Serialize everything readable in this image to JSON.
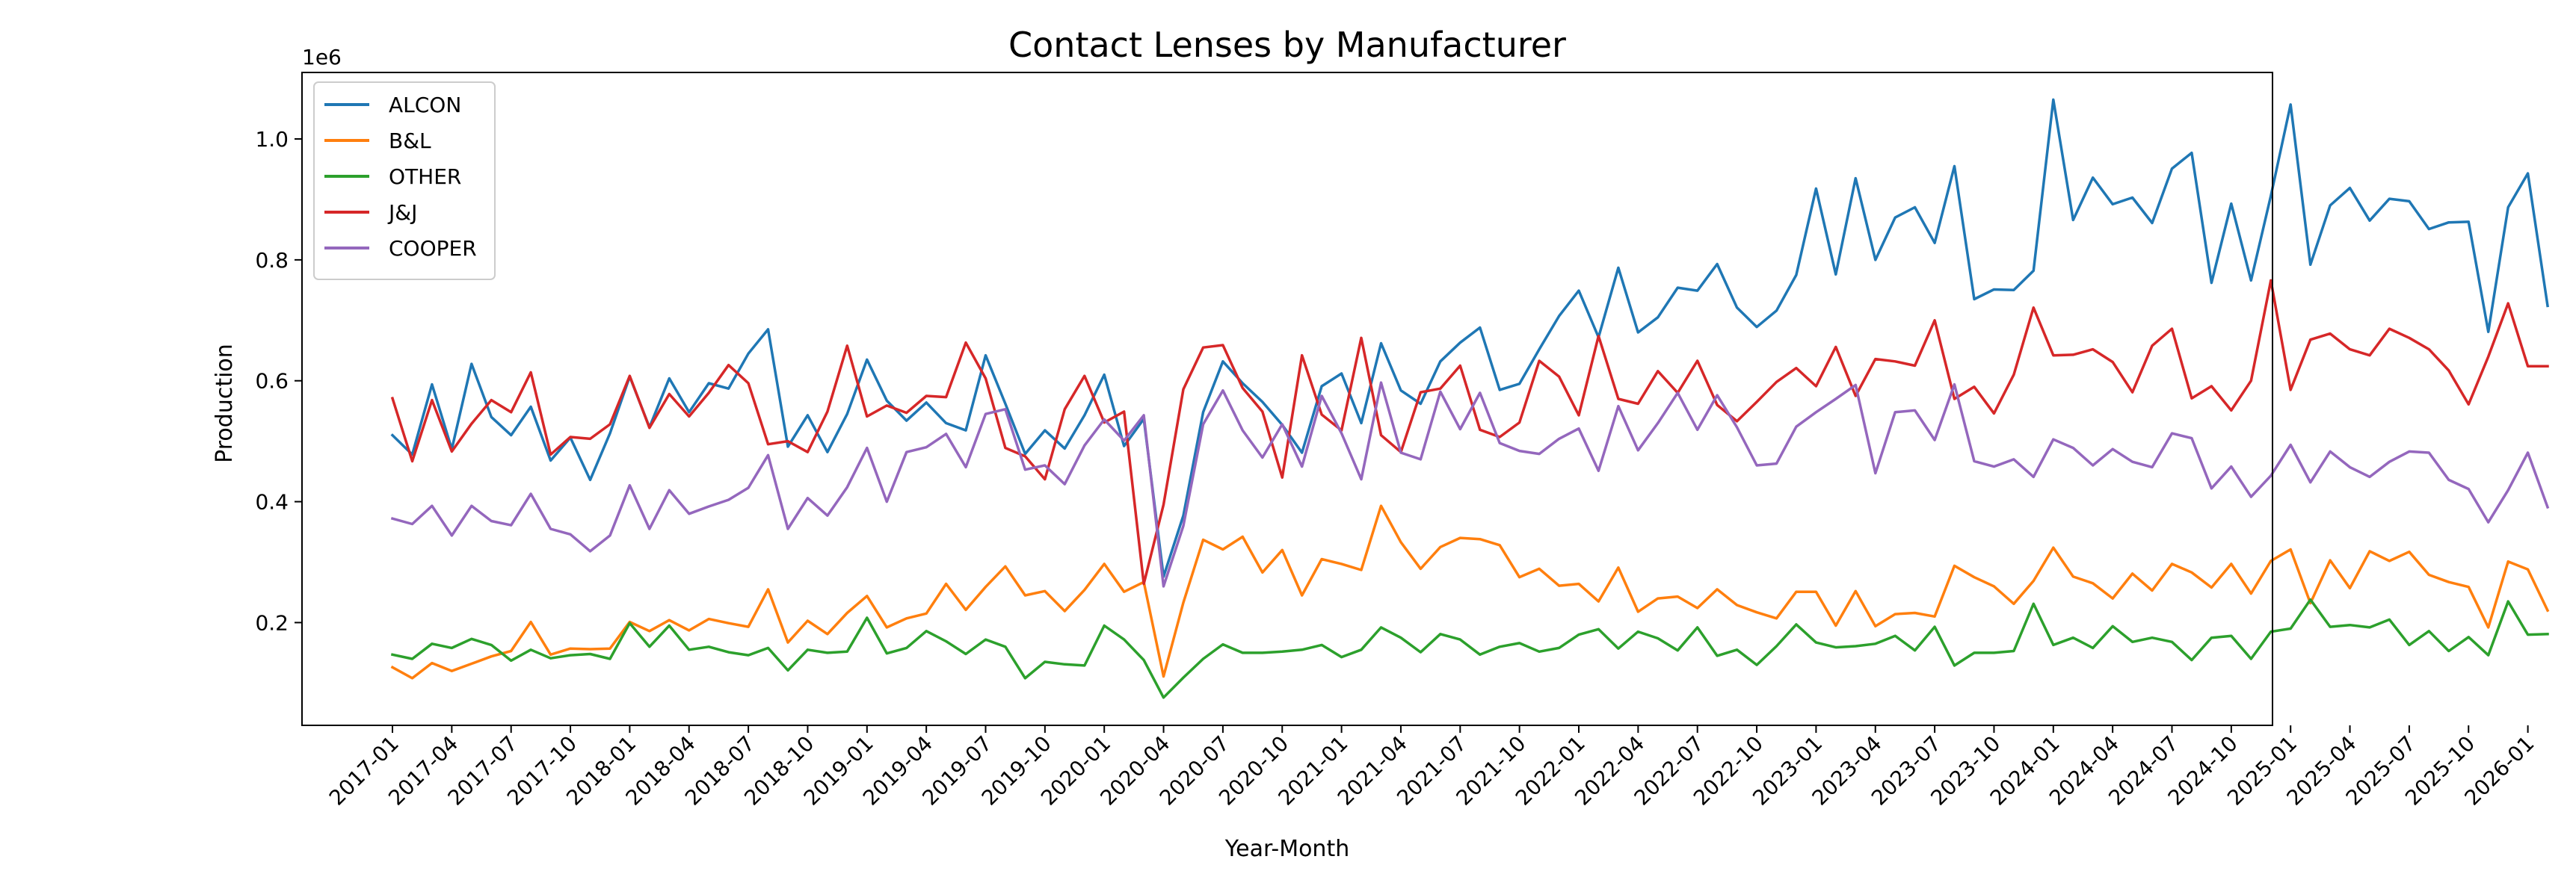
{
  "chart_data": {
    "type": "line",
    "title": "Contact Lenses by Manufacturer",
    "xlabel": "Year-Month",
    "ylabel": "Production",
    "y_offset_label": "1e6",
    "ylim": [
      0.03,
      1.11
    ],
    "yticks": [
      0.2,
      0.4,
      0.6,
      0.8,
      1.0
    ],
    "ytick_labels": [
      "0.2",
      "0.4",
      "0.6",
      "0.8",
      "1.0"
    ],
    "xtick_labels": [
      "2017-01",
      "2017-04",
      "2017-07",
      "2017-10",
      "2018-01",
      "2018-04",
      "2018-07",
      "2018-10",
      "2019-01",
      "2019-04",
      "2019-07",
      "2019-10",
      "2020-01",
      "2020-04",
      "2020-07",
      "2020-10",
      "2021-01",
      "2021-04",
      "2021-07",
      "2021-10",
      "2022-01",
      "2022-04",
      "2022-07",
      "2022-10",
      "2023-01",
      "2023-04",
      "2023-07",
      "2023-10",
      "2024-01",
      "2024-04",
      "2024-07",
      "2024-10",
      "2025-01",
      "2025-04",
      "2025-07",
      "2025-10",
      "2026-01"
    ],
    "xtick_step": 3,
    "grid": false,
    "legend_position": "upper-left",
    "x": [
      "2017-01",
      "2017-02",
      "2017-03",
      "2017-04",
      "2017-05",
      "2017-06",
      "2017-07",
      "2017-08",
      "2017-09",
      "2017-10",
      "2017-11",
      "2017-12",
      "2018-01",
      "2018-02",
      "2018-03",
      "2018-04",
      "2018-05",
      "2018-06",
      "2018-07",
      "2018-08",
      "2018-09",
      "2018-10",
      "2018-11",
      "2018-12",
      "2019-01",
      "2019-02",
      "2019-03",
      "2019-04",
      "2019-05",
      "2019-06",
      "2019-07",
      "2019-08",
      "2019-09",
      "2019-10",
      "2019-11",
      "2019-12",
      "2020-01",
      "2020-02",
      "2020-03",
      "2020-04",
      "2020-05",
      "2020-06",
      "2020-07",
      "2020-08",
      "2020-09",
      "2020-10",
      "2020-11",
      "2020-12",
      "2021-01",
      "2021-02",
      "2021-03",
      "2021-04",
      "2021-05",
      "2021-06",
      "2021-07",
      "2021-08",
      "2021-09",
      "2021-10",
      "2021-11",
      "2021-12",
      "2022-01",
      "2022-02",
      "2022-03",
      "2022-04",
      "2022-05",
      "2022-06",
      "2022-07",
      "2022-08",
      "2022-09",
      "2022-10",
      "2022-11",
      "2022-12",
      "2023-01",
      "2023-02",
      "2023-03",
      "2023-04",
      "2023-05",
      "2023-06",
      "2023-07",
      "2023-08",
      "2023-09",
      "2023-10",
      "2023-11",
      "2023-12",
      "2024-01",
      "2024-02",
      "2024-03",
      "2024-04",
      "2024-05",
      "2024-06",
      "2024-07",
      "2024-08",
      "2024-09",
      "2024-10",
      "2024-11",
      "2024-12",
      "2025-01",
      "2025-02",
      "2025-03",
      "2025-04",
      "2025-05",
      "2025-06",
      "2025-07",
      "2025-08",
      "2025-09",
      "2025-10",
      "2025-11",
      "2025-12",
      "2026-01",
      "2026-02"
    ],
    "series": [
      {
        "name": "ALCON",
        "color": "#1f77b4",
        "values": [
          0.51,
          0.478,
          0.594,
          0.487,
          0.628,
          0.54,
          0.51,
          0.557,
          0.468,
          0.506,
          0.436,
          0.513,
          0.607,
          0.523,
          0.604,
          0.548,
          0.596,
          0.587,
          0.645,
          0.685,
          0.491,
          0.543,
          0.482,
          0.545,
          0.635,
          0.567,
          0.534,
          0.564,
          0.53,
          0.518,
          0.642,
          0.562,
          0.479,
          0.518,
          0.488,
          0.543,
          0.61,
          0.492,
          0.537,
          0.276,
          0.377,
          0.548,
          0.632,
          0.596,
          0.565,
          0.527,
          0.481,
          0.591,
          0.612,
          0.53,
          0.662,
          0.584,
          0.562,
          0.632,
          0.663,
          0.688,
          0.585,
          0.595,
          0.652,
          0.707,
          0.749,
          0.672,
          0.787,
          0.68,
          0.705,
          0.754,
          0.749,
          0.793,
          0.721,
          0.689,
          0.716,
          0.775,
          0.918,
          0.776,
          0.935,
          0.8,
          0.87,
          0.887,
          0.828,
          0.955,
          0.735,
          0.751,
          0.75,
          0.782,
          1.065,
          0.866,
          0.936,
          0.892,
          0.903,
          0.861,
          0.951,
          0.977,
          0.762,
          0.893,
          0.766,
          0.906,
          1.057,
          0.792,
          0.89,
          0.919,
          0.865,
          0.901,
          0.897,
          0.851,
          0.862,
          0.863,
          0.681,
          0.887,
          0.943,
          0.724
        ]
      },
      {
        "name": "B&L",
        "color": "#ff7f0e",
        "values": [
          0.126,
          0.108,
          0.133,
          0.12,
          0.132,
          0.144,
          0.153,
          0.201,
          0.147,
          0.157,
          0.156,
          0.157,
          0.201,
          0.186,
          0.204,
          0.187,
          0.206,
          0.199,
          0.193,
          0.255,
          0.167,
          0.203,
          0.181,
          0.216,
          0.244,
          0.192,
          0.207,
          0.215,
          0.264,
          0.221,
          0.259,
          0.293,
          0.245,
          0.252,
          0.219,
          0.254,
          0.297,
          0.251,
          0.267,
          0.111,
          0.233,
          0.337,
          0.321,
          0.342,
          0.283,
          0.32,
          0.245,
          0.305,
          0.297,
          0.287,
          0.393,
          0.333,
          0.289,
          0.325,
          0.34,
          0.338,
          0.328,
          0.275,
          0.289,
          0.261,
          0.264,
          0.235,
          0.291,
          0.218,
          0.24,
          0.243,
          0.224,
          0.255,
          0.229,
          0.217,
          0.207,
          0.251,
          0.251,
          0.195,
          0.252,
          0.194,
          0.214,
          0.216,
          0.21,
          0.294,
          0.275,
          0.26,
          0.231,
          0.269,
          0.324,
          0.276,
          0.265,
          0.24,
          0.281,
          0.253,
          0.297,
          0.283,
          0.258,
          0.297,
          0.248,
          0.302,
          0.321,
          0.232,
          0.303,
          0.257,
          0.318,
          0.302,
          0.317,
          0.279,
          0.267,
          0.259,
          0.192,
          0.301,
          0.288,
          0.22
        ]
      },
      {
        "name": "OTHER",
        "color": "#2ca02c",
        "values": [
          0.147,
          0.14,
          0.165,
          0.158,
          0.173,
          0.163,
          0.137,
          0.155,
          0.141,
          0.146,
          0.148,
          0.14,
          0.199,
          0.16,
          0.195,
          0.155,
          0.16,
          0.151,
          0.146,
          0.158,
          0.121,
          0.155,
          0.15,
          0.152,
          0.208,
          0.149,
          0.158,
          0.186,
          0.169,
          0.148,
          0.172,
          0.16,
          0.108,
          0.135,
          0.131,
          0.129,
          0.195,
          0.172,
          0.138,
          0.076,
          0.109,
          0.14,
          0.164,
          0.15,
          0.15,
          0.152,
          0.155,
          0.163,
          0.143,
          0.155,
          0.192,
          0.175,
          0.151,
          0.181,
          0.172,
          0.147,
          0.16,
          0.166,
          0.152,
          0.158,
          0.18,
          0.189,
          0.157,
          0.185,
          0.174,
          0.154,
          0.192,
          0.145,
          0.155,
          0.13,
          0.161,
          0.197,
          0.167,
          0.159,
          0.161,
          0.165,
          0.178,
          0.154,
          0.193,
          0.129,
          0.15,
          0.15,
          0.153,
          0.231,
          0.163,
          0.175,
          0.158,
          0.194,
          0.168,
          0.175,
          0.168,
          0.138,
          0.175,
          0.178,
          0.14,
          0.185,
          0.19,
          0.238,
          0.193,
          0.196,
          0.192,
          0.205,
          0.163,
          0.186,
          0.153,
          0.176,
          0.146,
          0.235,
          0.18,
          0.181
        ]
      },
      {
        "name": "J&J",
        "color": "#d62728",
        "values": [
          0.571,
          0.467,
          0.568,
          0.483,
          0.529,
          0.568,
          0.548,
          0.614,
          0.478,
          0.507,
          0.504,
          0.528,
          0.608,
          0.522,
          0.578,
          0.541,
          0.58,
          0.626,
          0.596,
          0.495,
          0.5,
          0.482,
          0.549,
          0.658,
          0.541,
          0.559,
          0.547,
          0.575,
          0.573,
          0.663,
          0.604,
          0.489,
          0.475,
          0.437,
          0.553,
          0.608,
          0.531,
          0.549,
          0.264,
          0.395,
          0.586,
          0.655,
          0.659,
          0.588,
          0.549,
          0.44,
          0.642,
          0.544,
          0.518,
          0.671,
          0.51,
          0.482,
          0.581,
          0.587,
          0.625,
          0.519,
          0.507,
          0.531,
          0.633,
          0.607,
          0.543,
          0.674,
          0.57,
          0.562,
          0.616,
          0.58,
          0.633,
          0.56,
          0.533,
          0.565,
          0.598,
          0.621,
          0.591,
          0.656,
          0.575,
          0.636,
          0.632,
          0.625,
          0.7,
          0.57,
          0.59,
          0.546,
          0.61,
          0.721,
          0.642,
          0.643,
          0.652,
          0.631,
          0.581,
          0.658,
          0.686,
          0.571,
          0.591,
          0.551,
          0.6,
          0.766,
          0.585,
          0.668,
          0.678,
          0.652,
          0.642,
          0.686,
          0.671,
          0.652,
          0.617,
          0.561,
          0.64,
          0.728,
          0.624,
          0.624
        ]
      },
      {
        "name": "COOPER",
        "color": "#9467bd",
        "values": [
          0.372,
          0.363,
          0.393,
          0.344,
          0.393,
          0.368,
          0.361,
          0.413,
          0.355,
          0.346,
          0.318,
          0.344,
          0.427,
          0.355,
          0.419,
          0.38,
          0.392,
          0.403,
          0.423,
          0.477,
          0.355,
          0.406,
          0.377,
          0.424,
          0.489,
          0.4,
          0.482,
          0.49,
          0.512,
          0.457,
          0.545,
          0.553,
          0.453,
          0.46,
          0.429,
          0.493,
          0.536,
          0.501,
          0.543,
          0.26,
          0.36,
          0.528,
          0.584,
          0.518,
          0.473,
          0.528,
          0.458,
          0.575,
          0.513,
          0.437,
          0.597,
          0.481,
          0.47,
          0.582,
          0.52,
          0.58,
          0.497,
          0.484,
          0.479,
          0.504,
          0.521,
          0.451,
          0.558,
          0.485,
          0.53,
          0.58,
          0.519,
          0.576,
          0.523,
          0.46,
          0.463,
          0.524,
          0.548,
          0.57,
          0.593,
          0.447,
          0.548,
          0.551,
          0.502,
          0.594,
          0.467,
          0.458,
          0.47,
          0.441,
          0.503,
          0.489,
          0.46,
          0.487,
          0.466,
          0.457,
          0.513,
          0.505,
          0.422,
          0.458,
          0.408,
          0.443,
          0.494,
          0.432,
          0.483,
          0.457,
          0.441,
          0.466,
          0.483,
          0.481,
          0.436,
          0.421,
          0.366,
          0.419,
          0.481,
          0.391
        ]
      }
    ]
  }
}
